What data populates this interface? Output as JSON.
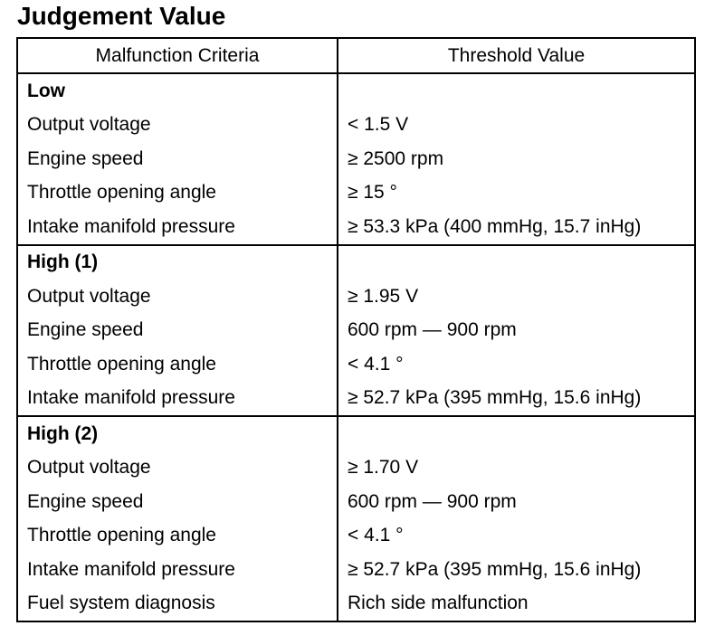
{
  "title": "Judgement Value",
  "table": {
    "headers": [
      "Malfunction Criteria",
      "Threshold Value"
    ],
    "groups": [
      {
        "label": "Low",
        "rows": [
          {
            "criteria": "Output voltage",
            "value": "< 1.5 V"
          },
          {
            "criteria": "Engine speed",
            "value": "≥ 2500 rpm"
          },
          {
            "criteria": "Throttle opening angle",
            "value": "≥ 15 °"
          },
          {
            "criteria": "Intake manifold pressure",
            "value": "≥ 53.3 kPa (400 mmHg, 15.7 inHg)"
          }
        ]
      },
      {
        "label": "High (1)",
        "rows": [
          {
            "criteria": "Output voltage",
            "value": "≥ 1.95  V"
          },
          {
            "criteria": "Engine speed",
            "value": "600  rpm — 900  rpm"
          },
          {
            "criteria": "Throttle opening angle",
            "value": "< 4.1 °"
          },
          {
            "criteria": "Intake manifold pressure",
            "value": "≥ 52.7 kPa (395  mmHg, 15.6 inHg)"
          }
        ]
      },
      {
        "label": "High (2)",
        "rows": [
          {
            "criteria": "Output voltage",
            "value": "≥ 1.70  V"
          },
          {
            "criteria": "Engine speed",
            "value": "600  rpm — 900  rpm"
          },
          {
            "criteria": "Throttle opening angle",
            "value": "< 4.1 °"
          },
          {
            "criteria": "Intake manifold pressure",
            "value": "≥ 52.7 kPa (395  mmHg, 15.6 inHg)"
          },
          {
            "criteria": "Fuel system diagnosis",
            "value": "Rich side malfunction"
          }
        ]
      }
    ]
  }
}
